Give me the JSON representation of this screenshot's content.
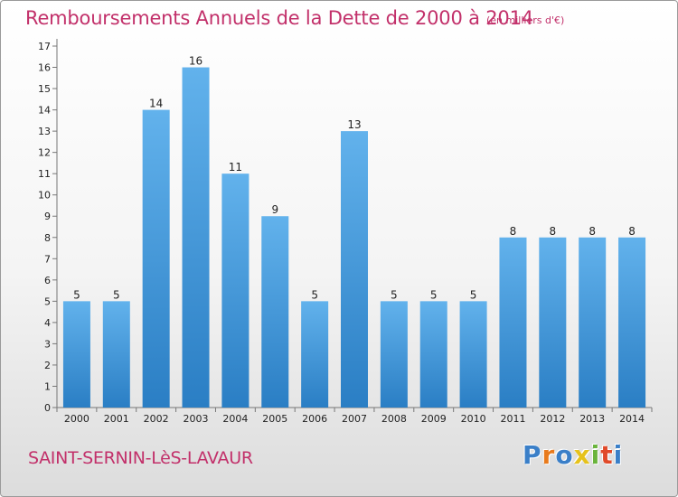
{
  "chart_data": {
    "type": "bar",
    "title": "Remboursements Annuels de la Dette de 2000 à 2014",
    "unit_note": "(en milliers d'€)",
    "categories": [
      "2000",
      "2001",
      "2002",
      "2003",
      "2004",
      "2005",
      "2006",
      "2007",
      "2008",
      "2009",
      "2010",
      "2011",
      "2012",
      "2013",
      "2014"
    ],
    "values": [
      5,
      5,
      14,
      16,
      11,
      9,
      5,
      13,
      5,
      5,
      5,
      8,
      8,
      8,
      8
    ],
    "ylim": [
      0,
      17
    ],
    "yticks": [
      0,
      1,
      2,
      3,
      4,
      5,
      6,
      7,
      8,
      9,
      10,
      11,
      12,
      13,
      14,
      15,
      16,
      17
    ],
    "grid": false,
    "bar_color_top": "#62b2ec",
    "bar_color_bottom": "#2a7ec4"
  },
  "footer": {
    "commune": "SAINT-SERNIN-LèS-LAVAUR",
    "logo_letters": [
      "P",
      "r",
      "o",
      "x",
      "i",
      "t",
      "i"
    ],
    "logo_colors": [
      "#3a7fc8",
      "#e87a1c",
      "#3a7fc8",
      "#e6c21c",
      "#6ab43c",
      "#e04a2a",
      "#3a7fc8"
    ]
  }
}
